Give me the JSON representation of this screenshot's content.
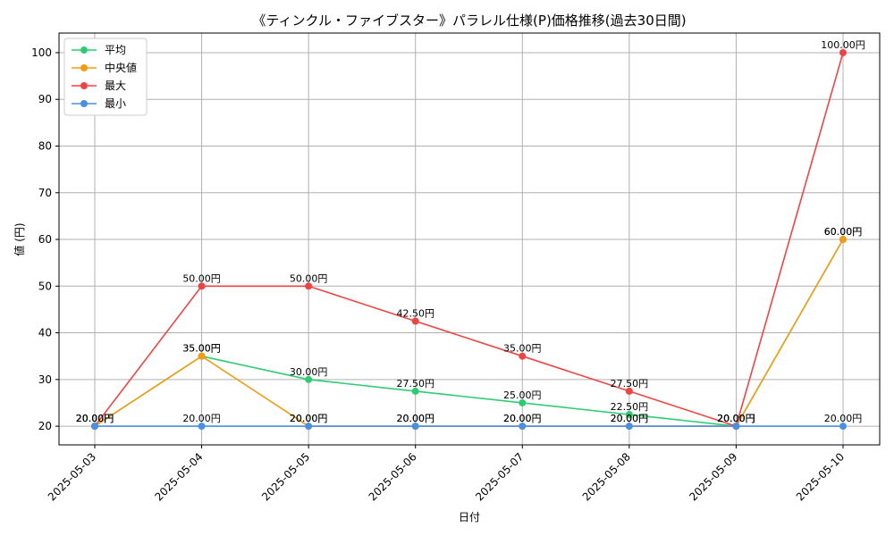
{
  "chart_data": {
    "type": "line",
    "title": "《ティンクル・ファイブスター》パラレル仕様(P)価格推移(過去30日間)",
    "xlabel": "日付",
    "ylabel": "値 (円)",
    "categories": [
      "2025-05-03",
      "2025-05-04",
      "2025-05-05",
      "2025-05-06",
      "2025-05-07",
      "2025-05-08",
      "2025-05-09",
      "2025-05-10"
    ],
    "ylim": [
      16,
      104.2
    ],
    "yticks": [
      20,
      30,
      40,
      50,
      60,
      70,
      80,
      90,
      100
    ],
    "grid": true,
    "legend_position": "top-left",
    "value_suffix": "円",
    "series": [
      {
        "name": "平均",
        "color": "#2ecc71",
        "values": [
          20,
          35,
          30,
          27.5,
          25,
          22.5,
          20,
          60
        ]
      },
      {
        "name": "中央値",
        "color": "#f39c12",
        "values": [
          20,
          35,
          20,
          20,
          20,
          20,
          20,
          60
        ]
      },
      {
        "name": "最大",
        "color": "#ef4444",
        "values": [
          20,
          50,
          50,
          42.5,
          35,
          27.5,
          20,
          100
        ]
      },
      {
        "name": "最小",
        "color": "#4a90e2",
        "values": [
          20,
          20,
          20,
          20,
          20,
          20,
          20,
          20
        ]
      }
    ]
  }
}
